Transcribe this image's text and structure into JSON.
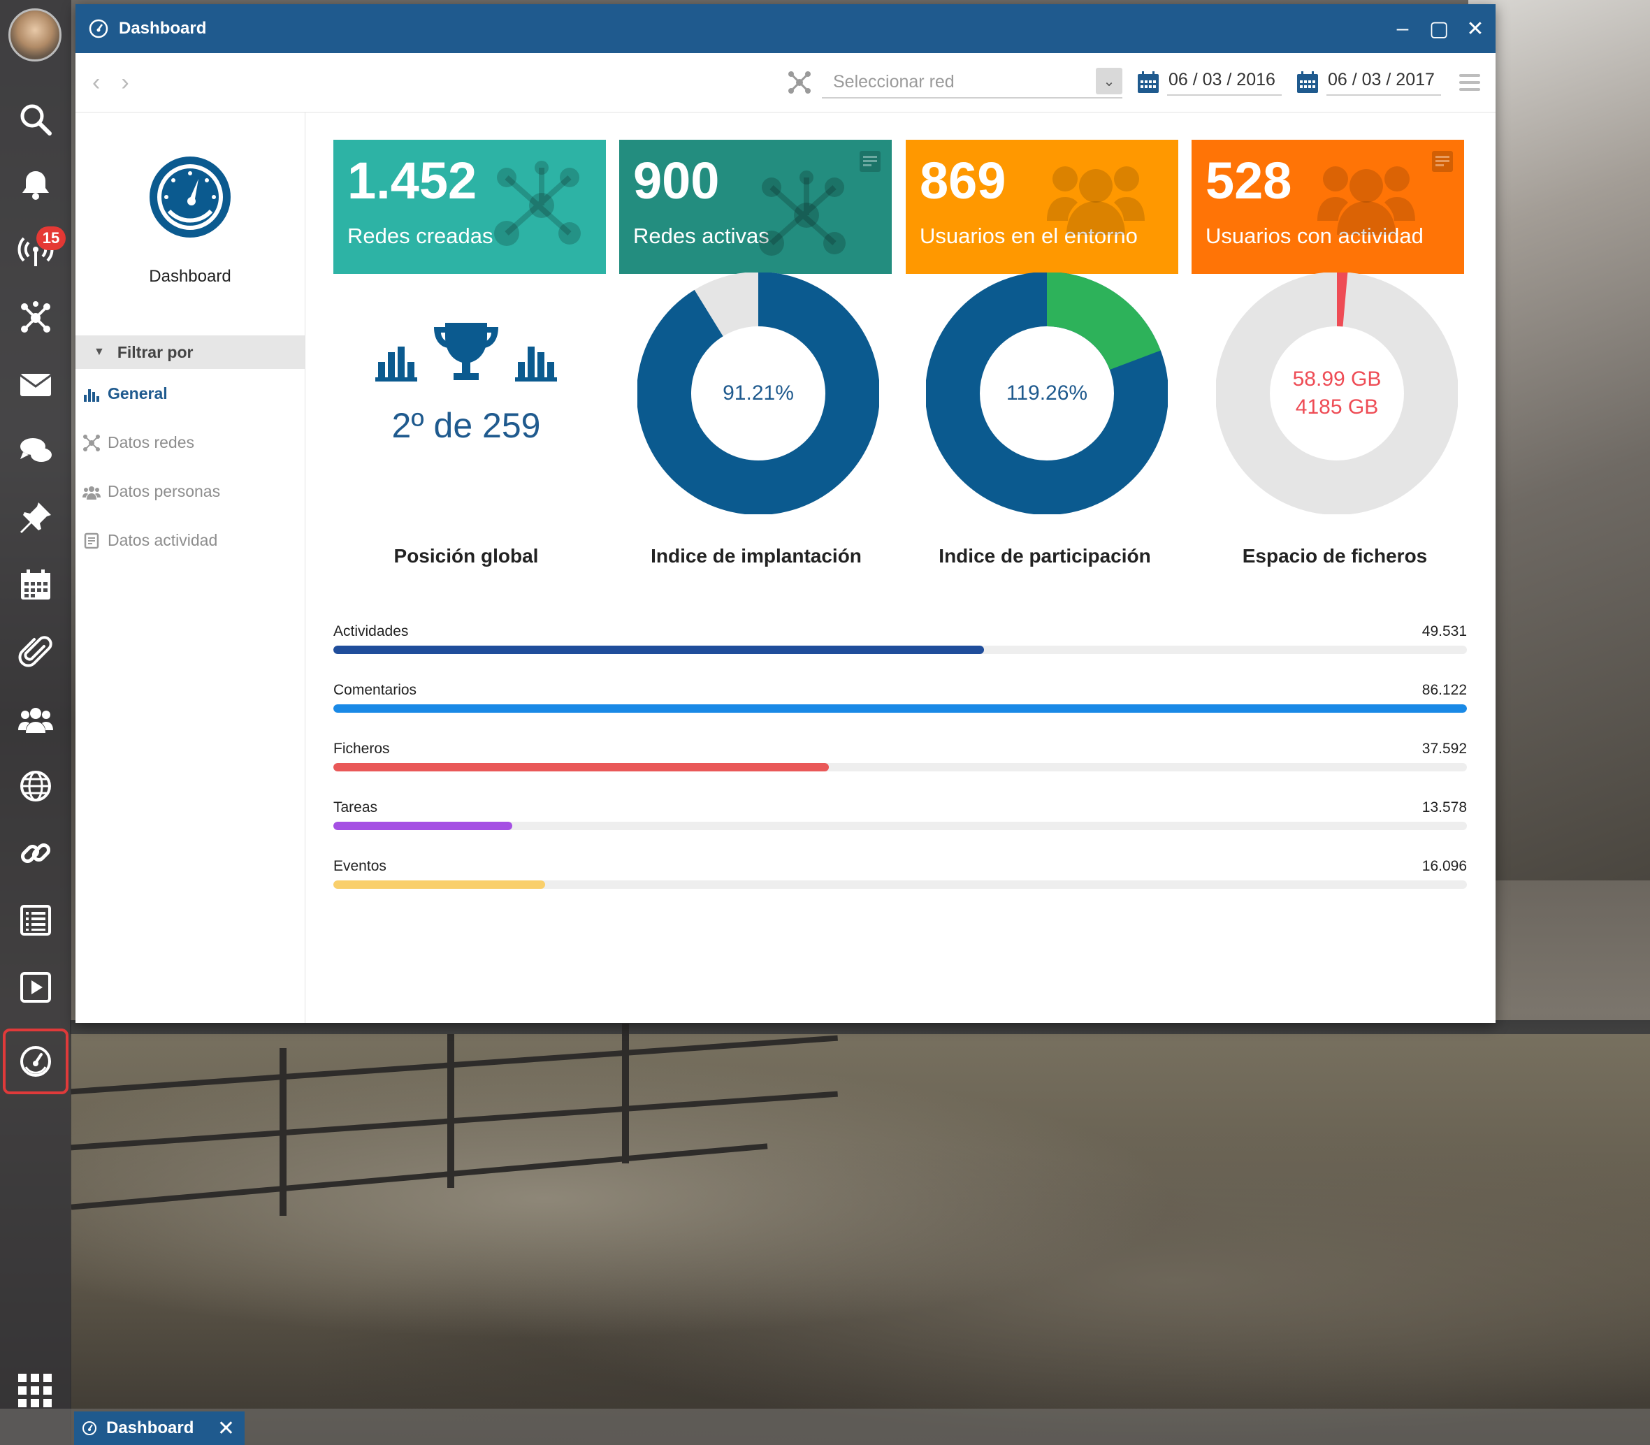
{
  "window": {
    "title": "Dashboard",
    "controls": {
      "minimize": "–",
      "maximize": "▢",
      "close": "✕"
    }
  },
  "toolbar": {
    "back": "‹",
    "forward": "›",
    "network_select": {
      "placeholder": "Seleccionar red",
      "caret": "⌄"
    },
    "date_from": "06 / 03 / 2016",
    "date_to": "06 / 03 / 2017"
  },
  "sidebar": {
    "title": "Dashboard",
    "filter_header": "Filtrar por",
    "filter_toggle": "▼",
    "items": [
      {
        "label": "General",
        "icon": "bar-chart-icon",
        "active": true
      },
      {
        "label": "Datos redes",
        "icon": "network-icon",
        "active": false
      },
      {
        "label": "Datos personas",
        "icon": "users-icon",
        "active": false
      },
      {
        "label": "Datos actividad",
        "icon": "document-icon",
        "active": false
      }
    ]
  },
  "tiles": [
    {
      "value": "1.452",
      "label": "Redes creadas",
      "color": "#2db3a5",
      "icon": "network-icon",
      "note": false
    },
    {
      "value": "900",
      "label": "Redes activas",
      "color": "#238d7f",
      "icon": "network-icon",
      "note": true
    },
    {
      "value": "869",
      "label": "Usuarios en el entorno",
      "color": "#ff9800",
      "icon": "users-icon",
      "note": false
    },
    {
      "value": "528",
      "label": "Usuarios con actividad",
      "color": "#ff7406",
      "icon": "users-icon",
      "note": true
    }
  ],
  "kpis": {
    "position": {
      "rank": "2º de 259",
      "caption": "Posición global"
    },
    "implantation": {
      "center": "91.21%",
      "value": 91.21,
      "caption": "Indice de implantación"
    },
    "participation": {
      "center": "119.26%",
      "value": 119.26,
      "caption": "Indice de participación"
    },
    "storage": {
      "used": "58.99 GB",
      "total": "4185 GB",
      "used_value": 58.99,
      "total_value": 4185,
      "caption": "Espacio de ficheros"
    }
  },
  "colors": {
    "primary": "#0b5a8f",
    "ring_bg": "#e5e5e5",
    "participation_extra": "#2db25a",
    "storage_accent": "#ee4c55"
  },
  "activity_bars": [
    {
      "label": "Actividades",
      "value": "49.531",
      "fill": 0.574,
      "color": "#1f4d9b"
    },
    {
      "label": "Comentarios",
      "value": "86.122",
      "fill": 1.0,
      "color": "#1989e6"
    },
    {
      "label": "Ficheros",
      "value": "37.592",
      "fill": 0.437,
      "color": "#e95858"
    },
    {
      "label": "Tareas",
      "value": "13.578",
      "fill": 0.158,
      "color": "#a550e3"
    },
    {
      "label": "Eventos",
      "value": "16.096",
      "fill": 0.187,
      "color": "#f9cf6b"
    }
  ],
  "dock": {
    "badge": "15",
    "icons": [
      "search-icon",
      "bell-icon",
      "antenna-icon",
      "network-icon",
      "mail-icon",
      "chat-icon",
      "pin-icon",
      "calendar-icon",
      "paperclip-icon",
      "users-icon",
      "globe-icon",
      "link-icon",
      "list-icon",
      "play-icon",
      "dashboard-icon"
    ]
  },
  "taskbar": {
    "task_label": "Dashboard",
    "close": "✕"
  }
}
